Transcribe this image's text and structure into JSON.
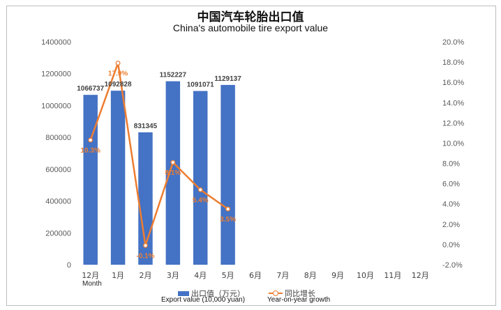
{
  "chart_data": {
    "type": "bar",
    "title": "中国汽车轮胎出口值",
    "subtitle": "China's automobile tire export value",
    "categories": [
      "12月",
      "1月",
      "2月",
      "3月",
      "4月",
      "5月",
      "6月",
      "7月",
      "8月",
      "9月",
      "10月",
      "11月",
      "12月"
    ],
    "x_axis_note": "Month",
    "series": [
      {
        "name": "出口值（万元）",
        "name_en": "Export value (10,000 yuan)",
        "type": "bar",
        "color": "#4472c4",
        "axis": "left",
        "values": [
          1066737,
          1092828,
          831345,
          1152227,
          1091071,
          1129137,
          null,
          null,
          null,
          null,
          null,
          null,
          null
        ],
        "labels": [
          "1066737",
          "1092828",
          "831345",
          "1152227",
          "1091071",
          "1129137"
        ]
      },
      {
        "name": "同比增长",
        "name_en": "Year-on-year growth",
        "type": "line",
        "color": "#ed7d31",
        "axis": "right",
        "values": [
          10.3,
          17.9,
          -0.1,
          8.1,
          5.4,
          3.5,
          null,
          null,
          null,
          null,
          null,
          null,
          null
        ],
        "labels": [
          "10.3%",
          "17.9%",
          "-0.1%",
          "8.1%",
          "5.4%",
          "3.5%"
        ]
      }
    ],
    "y_left": {
      "min": 0,
      "max": 1400000,
      "step": 200000,
      "ticks": [
        "0",
        "200000",
        "400000",
        "600000",
        "800000",
        "1000000",
        "1200000",
        "1400000"
      ]
    },
    "y_right": {
      "min": -2,
      "max": 20,
      "step": 2,
      "ticks": [
        "-2.0%",
        "0.0%",
        "2.0%",
        "4.0%",
        "6.0%",
        "8.0%",
        "10.0%",
        "12.0%",
        "14.0%",
        "16.0%",
        "18.0%",
        "20.0%"
      ]
    },
    "grid": false,
    "legend_position": "bottom"
  }
}
